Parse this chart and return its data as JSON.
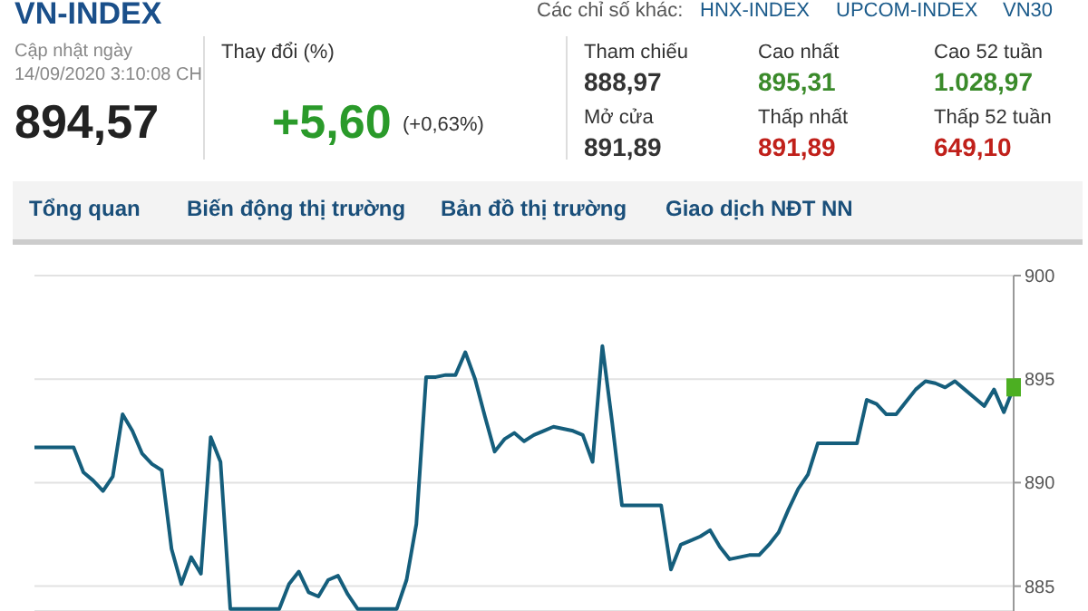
{
  "chart_data": {
    "type": "line",
    "title": "VN-INDEX",
    "subtitle": "Cập nhật ngày 14/09/2020 3:10:08 CH",
    "annotations": [
      "Các chỉ số khác:",
      "HNX-INDEX",
      "UPCOM-INDEX",
      "VN30",
      "894,57",
      "Thay đổi (%)",
      "+5,60",
      "(+0,63%)",
      "Tham chiếu",
      "888,97",
      "Mở cửa",
      "891,89",
      "Cao nhất",
      "895,31",
      "Thấp nhất",
      "891,89",
      "Cao 52 tuần",
      "1.028,97",
      "Thấp 52 tuần",
      "649,10",
      "Tổng quan",
      "Biến động thị trường",
      "Bản đồ thị trường",
      "Giao dịch NĐT NN"
    ],
    "categories": [
      null,
      null,
      null,
      null,
      null,
      null,
      null,
      null,
      null,
      null,
      null,
      null,
      null,
      null,
      null,
      null,
      null,
      null,
      null,
      null,
      null,
      null,
      null,
      null,
      null,
      null,
      null,
      null,
      null,
      null,
      null,
      null,
      null,
      null,
      null,
      null,
      null,
      null,
      null,
      null,
      null,
      null,
      null,
      null,
      null,
      null,
      null,
      null,
      null,
      null,
      null,
      null,
      null,
      null,
      null,
      null,
      null,
      null,
      null,
      null,
      null,
      null,
      null,
      null,
      null,
      null,
      null,
      null,
      null,
      null,
      null,
      null,
      null,
      null,
      null,
      null,
      null,
      null,
      null,
      null,
      null,
      null,
      null,
      null,
      null,
      null,
      null,
      null,
      null,
      null,
      null,
      null,
      null,
      null,
      null,
      null,
      null,
      null,
      null,
      null,
      null
    ],
    "ylim": [
      883.8,
      900
    ],
    "yticks": [
      885,
      890,
      895,
      900
    ],
    "grid": "y",
    "tick_labels": "y",
    "line_style": "solid",
    "series": [
      {
        "color": "#155e7c",
        "values": [
          891.7,
          891.7,
          891.7,
          891.7,
          891.7,
          890.5,
          890.1,
          889.6,
          890.3,
          893.3,
          892.5,
          891.4,
          890.9,
          890.6,
          886.8,
          885.1,
          886.4,
          885.6,
          892.2,
          891.0,
          883.9,
          883.9,
          883.9,
          883.9,
          883.9,
          883.9,
          885.1,
          885.7,
          884.7,
          884.5,
          885.3,
          885.5,
          884.6,
          883.9,
          883.9,
          883.9,
          883.9,
          883.9,
          885.3,
          888.0,
          895.1,
          895.1,
          895.2,
          895.2,
          896.3,
          895.0,
          893.2,
          891.5,
          892.1,
          892.4,
          892.0,
          892.3,
          892.5,
          892.7,
          892.6,
          892.5,
          892.3,
          891.0,
          896.6,
          892.9,
          888.9,
          888.9,
          888.9,
          888.9,
          888.9,
          885.8,
          887.0,
          887.2,
          887.4,
          887.7,
          886.9,
          886.3,
          886.4,
          886.5,
          886.5,
          887.0,
          887.6,
          888.7,
          889.7,
          890.4,
          891.9,
          891.9,
          891.9,
          891.9,
          891.9,
          894.0,
          893.8,
          893.3,
          893.3,
          893.9,
          894.5,
          894.9,
          894.8,
          894.6,
          894.9,
          894.5,
          894.1,
          893.7,
          894.5,
          893.4,
          894.6
        ]
      }
    ]
  }
}
